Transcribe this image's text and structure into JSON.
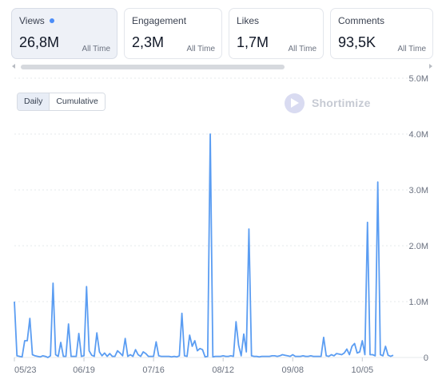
{
  "cards": [
    {
      "label": "Views",
      "value": "26,8M",
      "range": "All Time",
      "active": true
    },
    {
      "label": "Engagement",
      "value": "2,3M",
      "range": "All Time",
      "active": false
    },
    {
      "label": "Likes",
      "value": "1,7M",
      "range": "All Time",
      "active": false
    },
    {
      "label": "Comments",
      "value": "93,5K",
      "range": "All Time",
      "active": false
    }
  ],
  "toggle": {
    "daily": "Daily",
    "cumulative": "Cumulative"
  },
  "brand": {
    "name": "Shortimize"
  },
  "colors": {
    "accent": "#4b8df8",
    "line": "#5b9df2",
    "grid": "#e6e8eb"
  },
  "chart_data": {
    "type": "line",
    "series": [
      {
        "values": [
          1.0,
          0.03,
          0.02,
          0.01,
          0.3,
          0.3,
          0.7,
          0.05,
          0.03,
          0.02,
          0.01,
          0.03,
          0.02,
          0.0,
          0.03,
          1.33,
          0.05,
          0.02,
          0.27,
          0.02,
          0.02,
          0.6,
          0.02,
          0.02,
          0.02,
          0.43,
          0.02,
          0.03,
          1.27,
          0.12,
          0.04,
          0.02,
          0.44,
          0.1,
          0.03,
          0.08,
          0.02,
          0.07,
          0.02,
          0.02,
          0.12,
          0.08,
          0.03,
          0.34,
          0.02,
          0.05,
          0.02,
          0.14,
          0.05,
          0.02,
          0.1,
          0.07,
          0.02,
          0.02,
          0.02,
          0.28,
          0.03,
          0.02,
          0.02,
          0.02,
          0.02,
          0.01,
          0.02,
          0.01,
          0.03,
          0.79,
          0.03,
          0.02,
          0.4,
          0.2,
          0.3,
          0.12,
          0.16,
          0.14,
          0.01,
          0.02,
          4.0,
          0.01,
          0.02,
          0.02,
          0.02,
          0.03,
          0.02,
          0.02,
          0.03,
          0.02,
          0.64,
          0.22,
          0.03,
          0.42,
          0.1,
          2.3,
          0.03,
          0.02,
          0.02,
          0.01,
          0.02,
          0.02,
          0.02,
          0.02,
          0.03,
          0.03,
          0.02,
          0.03,
          0.05,
          0.04,
          0.03,
          0.02,
          0.05,
          0.02,
          0.02,
          0.02,
          0.03,
          0.02,
          0.02,
          0.03,
          0.02,
          0.02,
          0.02,
          0.02,
          0.36,
          0.03,
          0.02,
          0.05,
          0.03,
          0.07,
          0.06,
          0.05,
          0.08,
          0.15,
          0.05,
          0.2,
          0.25,
          0.08,
          0.1,
          0.3,
          0.05,
          2.42,
          0.05,
          0.05,
          0.03,
          3.14,
          0.05,
          0.03,
          0.2,
          0.04,
          0.02,
          0.04
        ]
      }
    ],
    "x_tick_labels": [
      "05/23",
      "06/19",
      "07/16",
      "08/12",
      "09/08",
      "10/05"
    ],
    "x_tick_index": [
      0,
      27,
      54,
      81,
      108,
      135
    ],
    "y_tick_labels": [
      "0",
      "1.0M",
      "2.0M",
      "3.0M",
      "4.0M",
      "5.0M"
    ],
    "y_tick_values": [
      0,
      1,
      2,
      3,
      4,
      5
    ],
    "ylim": [
      0,
      5
    ],
    "grid": true
  }
}
